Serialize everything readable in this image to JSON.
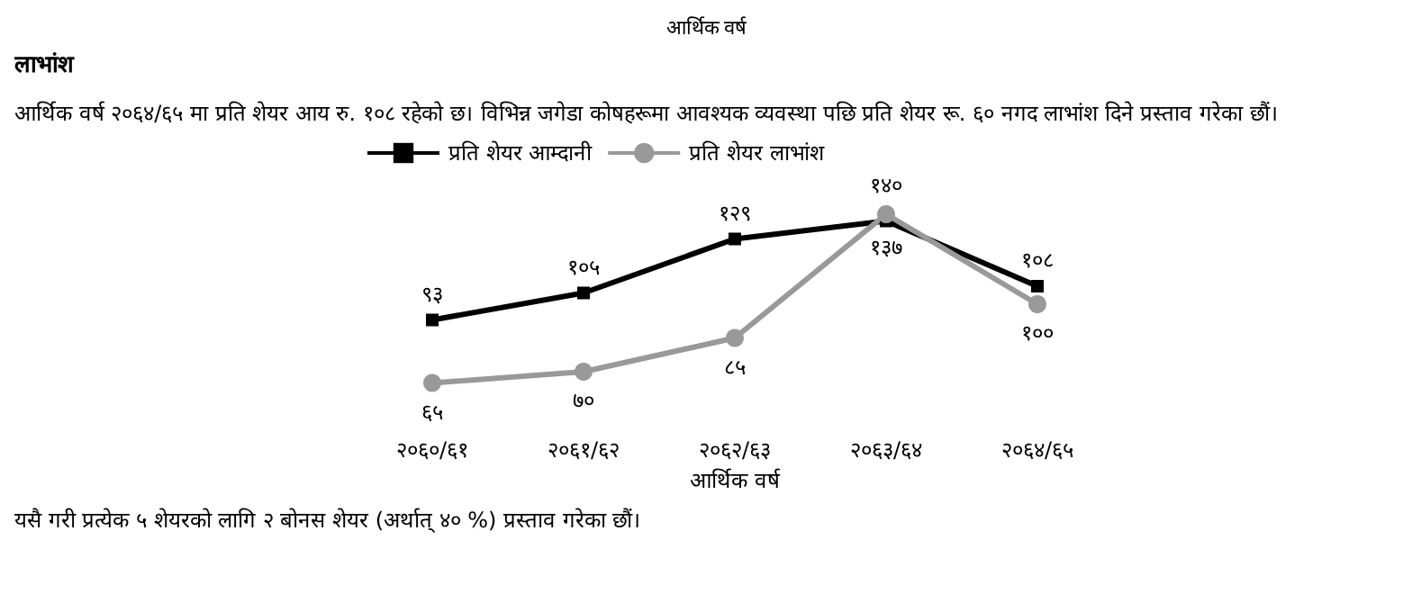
{
  "chart_data": {
    "type": "line",
    "title": "लाभांश",
    "subtitle": "आर्थिक वर्ष २०६४/६५ मा प्रति शेयर आय रु. १०८ रहेको छ। विभिन्न जगेडा कोषहरूमा आवश्यक व्यवस्था पछि प्रति शेयर रू. ६० नगद लाभांश दिने प्रस्ताव गरेका छौं।",
    "annotations": [
      "आर्थिक वर्ष",
      "यसै गरी प्रत्येक ५ शेयरको लागि २ बोनस शेयर (अर्थात् ४० %) प्रस्ताव गरेका छौं।"
    ],
    "xlabel": "आर्थिक वर्ष",
    "categories": [
      "२०६०/६१",
      "२०६१/६२",
      "२०६२/६३",
      "२०६३/६४",
      "२०६४/६५"
    ],
    "series": [
      {
        "name": "प्रति शेयर आम्दानी",
        "color": "#000000",
        "marker": "square",
        "values": [
          93,
          105,
          129,
          137,
          108
        ],
        "value_labels": [
          "९३",
          "१०५",
          "१२९",
          "१३७",
          "१०८"
        ]
      },
      {
        "name": "प्रति शेयर लाभांश",
        "color": "#999999",
        "marker": "circle",
        "values": [
          65,
          70,
          85,
          140,
          100
        ],
        "value_labels": [
          "६५",
          "७०",
          "८५",
          "१४०",
          "१००"
        ]
      }
    ],
    "legend": "top",
    "grid": false
  }
}
